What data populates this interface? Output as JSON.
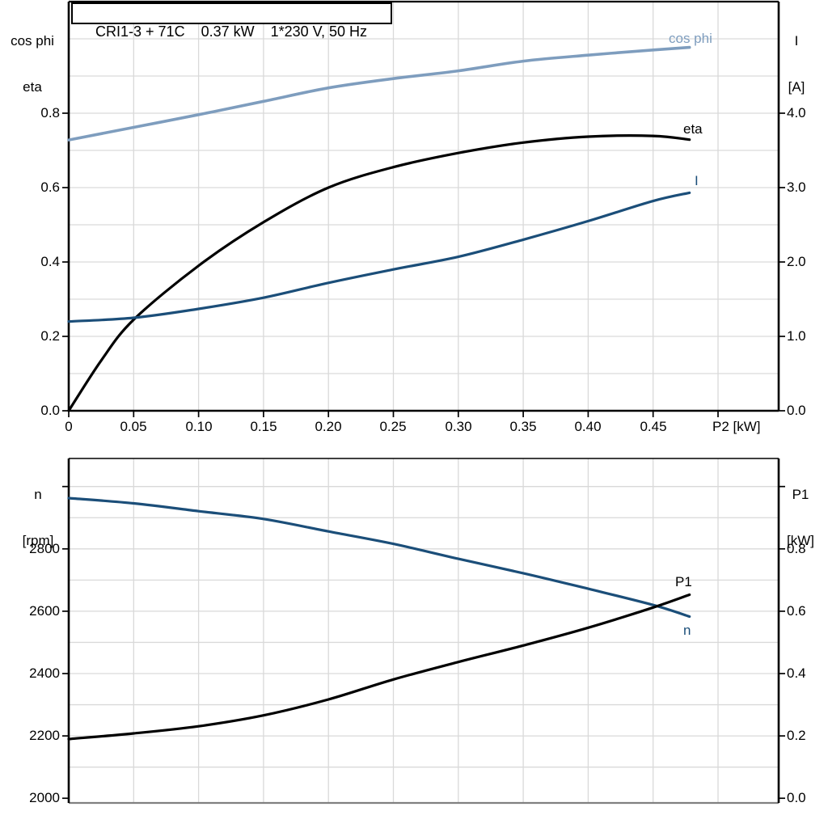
{
  "colors": {
    "axis": "#000000",
    "grid": "#D9D9D9",
    "bottom_border": "#808080",
    "light_blue": "#7E9DBE",
    "dark_blue": "#1B4E79",
    "black_curve": "#000000"
  },
  "chart_data": [
    {
      "type": "line",
      "title": "CRI1-3 + 71C    0.37 kW    1*230 V, 50 Hz",
      "x_axis": {
        "label": "P2 [kW]",
        "min": 0,
        "max": 0.5467,
        "ticks": [
          0,
          0.05,
          0.1,
          0.15,
          0.2,
          0.25,
          0.3,
          0.35,
          0.4,
          0.45,
          0.5
        ],
        "tick_labels": [
          "0",
          "0.05",
          "0.10",
          "0.15",
          "0.20",
          "0.25",
          "0.30",
          "0.35",
          "0.40",
          "0.45"
        ],
        "grid_from": 0.05,
        "grid_to": 0.5,
        "grid_step": 0.05
      },
      "left_axis": {
        "title_lines": [
          "cos phi",
          "eta"
        ],
        "min": 0,
        "max": 1.1,
        "ticks": [
          0,
          0.2,
          0.4,
          0.6,
          0.8
        ],
        "tick_labels": [
          "0.0",
          "0.2",
          "0.4",
          "0.6",
          "0.8"
        ],
        "grid_from": 0.1,
        "grid_to": 1.0,
        "grid_step": 0.1
      },
      "right_axis": {
        "title_lines": [
          "I",
          "[A]"
        ],
        "min": 0,
        "max": 5.5,
        "ticks": [
          0,
          1,
          2,
          3,
          4
        ],
        "tick_labels": [
          "0.0",
          "1.0",
          "2.0",
          "3.0",
          "4.0"
        ]
      },
      "legend_position": "end-of-curve",
      "grid": true,
      "series": [
        {
          "name": "cos phi",
          "axis": "left",
          "color": "#7E9DBE",
          "width": 3.6,
          "x": [
            0,
            0.05,
            0.1,
            0.15,
            0.2,
            0.25,
            0.3,
            0.35,
            0.4,
            0.45,
            0.478
          ],
          "y": [
            0.728,
            0.762,
            0.796,
            0.832,
            0.868,
            0.893,
            0.914,
            0.94,
            0.956,
            0.97,
            0.977
          ]
        },
        {
          "name": "eta",
          "axis": "left",
          "color": "#000000",
          "width": 3.2,
          "x": [
            0,
            0.025,
            0.05,
            0.1,
            0.15,
            0.2,
            0.25,
            0.3,
            0.35,
            0.4,
            0.45,
            0.478
          ],
          "y": [
            0.0,
            0.135,
            0.245,
            0.39,
            0.507,
            0.6,
            0.655,
            0.693,
            0.721,
            0.737,
            0.739,
            0.729
          ]
        },
        {
          "name": "I",
          "axis": "right",
          "color": "#1B4E79",
          "width": 3.2,
          "x": [
            0,
            0.05,
            0.1,
            0.15,
            0.2,
            0.25,
            0.3,
            0.35,
            0.4,
            0.45,
            0.478
          ],
          "y": [
            1.2,
            1.25,
            1.37,
            1.52,
            1.72,
            1.9,
            2.07,
            2.3,
            2.55,
            2.82,
            2.93
          ]
        }
      ]
    },
    {
      "type": "line",
      "x_axis": {
        "min": 0,
        "max": 0.5467,
        "grid_from": 0.05,
        "grid_to": 0.5,
        "grid_step": 0.05
      },
      "left_axis": {
        "title_lines": [
          "n",
          "[rpm]"
        ],
        "min": 1985,
        "max": 3090,
        "ticks": [
          2000,
          2200,
          2400,
          2600,
          2800,
          3000
        ],
        "tick_labels": [
          "2000",
          "2200",
          "2400",
          "2600",
          "2800"
        ],
        "grid_from": 2100,
        "grid_to": 3000,
        "grid_step": 100
      },
      "right_axis": {
        "title_lines": [
          "P1",
          "[kW]"
        ],
        "min": -0.015,
        "max": 1.09,
        "ticks": [
          0,
          0.2,
          0.4,
          0.6,
          0.8,
          1.0
        ],
        "tick_labels": [
          "0.0",
          "0.2",
          "0.4",
          "0.6",
          "0.8"
        ]
      },
      "legend_position": "end-of-curve",
      "grid": true,
      "series": [
        {
          "name": "n",
          "axis": "left",
          "color": "#1B4E79",
          "width": 3.2,
          "x": [
            0,
            0.05,
            0.1,
            0.15,
            0.2,
            0.25,
            0.3,
            0.35,
            0.4,
            0.45,
            0.478
          ],
          "y": [
            2963,
            2946,
            2921,
            2896,
            2856,
            2816,
            2768,
            2722,
            2672,
            2620,
            2583
          ]
        },
        {
          "name": "P1",
          "axis": "right",
          "color": "#000000",
          "width": 3.2,
          "x": [
            0,
            0.05,
            0.1,
            0.15,
            0.2,
            0.25,
            0.3,
            0.35,
            0.4,
            0.45,
            0.478
          ],
          "y": [
            0.19,
            0.208,
            0.231,
            0.266,
            0.317,
            0.381,
            0.437,
            0.49,
            0.547,
            0.612,
            0.653
          ]
        }
      ]
    }
  ]
}
